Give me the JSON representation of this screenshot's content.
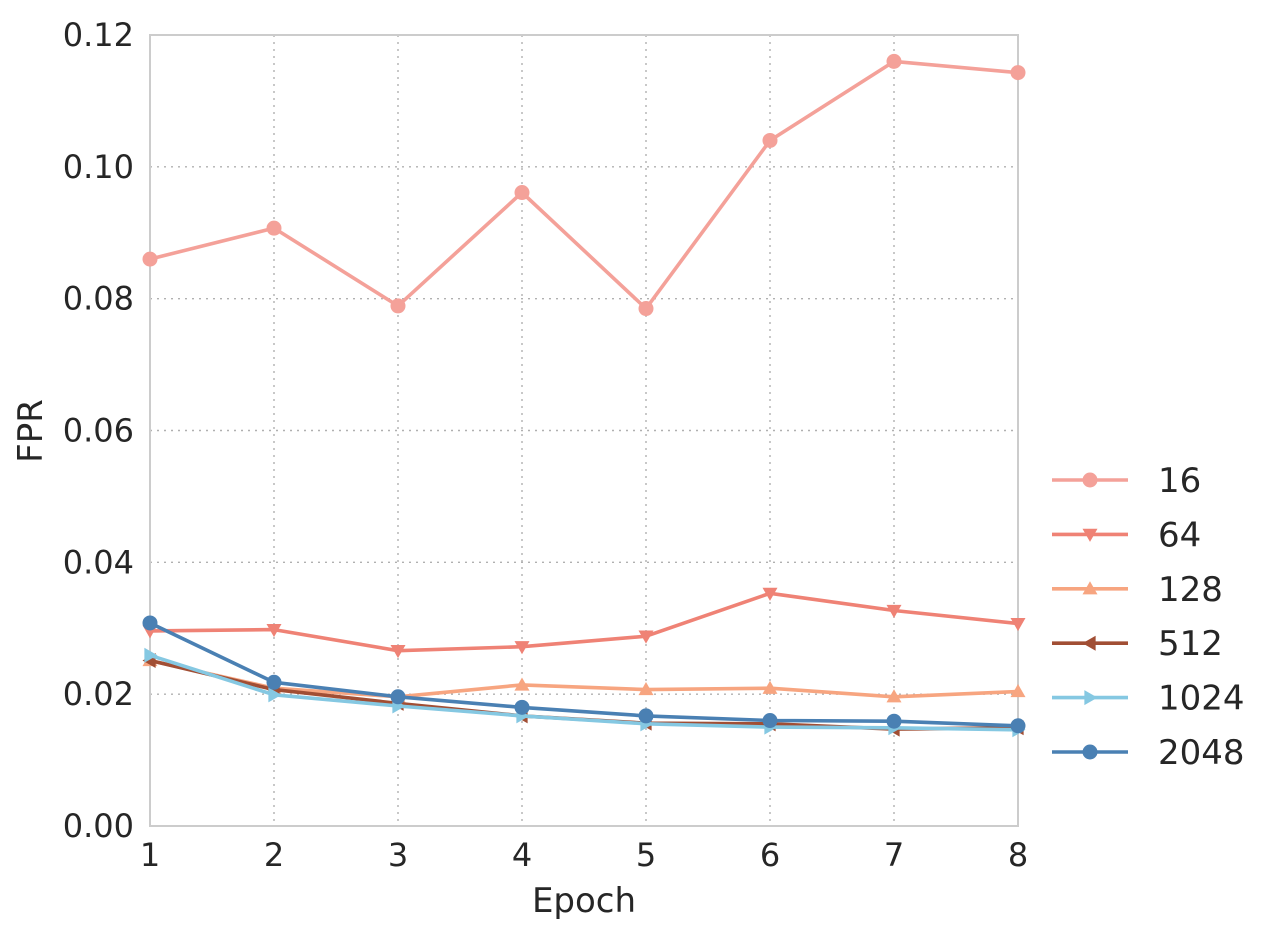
{
  "chart_data": {
    "type": "line",
    "title": "",
    "xlabel": "Epoch",
    "ylabel": "FPR",
    "x": [
      1,
      2,
      3,
      4,
      5,
      6,
      7,
      8
    ],
    "xlim": [
      1,
      8
    ],
    "ylim": [
      0,
      0.12
    ],
    "xticks": [
      "1",
      "2",
      "3",
      "4",
      "5",
      "6",
      "7",
      "8"
    ],
    "yticks": [
      "0.00",
      "0.02",
      "0.04",
      "0.06",
      "0.08",
      "0.10",
      "0.12"
    ],
    "ytick_values": [
      0,
      0.02,
      0.04,
      0.06,
      0.08,
      0.1,
      0.12
    ],
    "grid": true,
    "legend_position": "right",
    "series": [
      {
        "name": "16",
        "color": "#f4a199",
        "marker": "circle",
        "values": [
          0.086,
          0.0907,
          0.0789,
          0.0961,
          0.0785,
          0.104,
          0.116,
          0.1143
        ]
      },
      {
        "name": "64",
        "color": "#ef8275",
        "marker": "triangle-down",
        "values": [
          0.0296,
          0.0298,
          0.0266,
          0.0272,
          0.0288,
          0.0353,
          0.0327,
          0.0307
        ]
      },
      {
        "name": "128",
        "color": "#f7a580",
        "marker": "triangle-up",
        "values": [
          0.0251,
          0.0209,
          0.0196,
          0.0214,
          0.0207,
          0.0209,
          0.0196,
          0.0204
        ]
      },
      {
        "name": "512",
        "color": "#a14e34",
        "marker": "triangle-left",
        "values": [
          0.0251,
          0.0207,
          0.0186,
          0.0167,
          0.0156,
          0.0155,
          0.0147,
          0.0149
        ]
      },
      {
        "name": "1024",
        "color": "#85c8e2",
        "marker": "triangle-right",
        "values": [
          0.0259,
          0.0199,
          0.0182,
          0.0167,
          0.0155,
          0.015,
          0.0149,
          0.0146
        ]
      },
      {
        "name": "2048",
        "color": "#4a80b3",
        "marker": "circle",
        "values": [
          0.0308,
          0.0218,
          0.0196,
          0.018,
          0.0167,
          0.016,
          0.0159,
          0.0152
        ]
      }
    ]
  }
}
